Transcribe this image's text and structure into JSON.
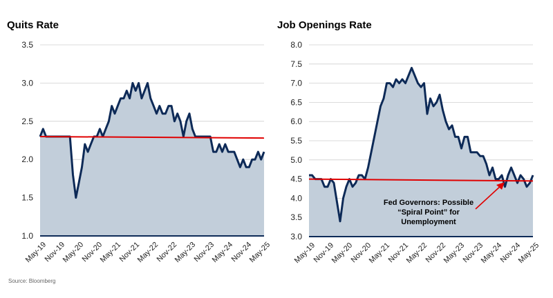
{
  "source": "Source: Bloomberg",
  "chart_data": [
    {
      "type": "area",
      "title": "Quits Rate",
      "ylim": [
        1.0,
        3.5
      ],
      "yticks": [
        "1.0",
        "1.5",
        "2.0",
        "2.5",
        "3.0",
        "3.5"
      ],
      "xticks": [
        "May-19",
        "Nov-19",
        "May-20",
        "Nov-20",
        "May-21",
        "Nov-21",
        "May-22",
        "Nov-22",
        "May-23",
        "Nov-23",
        "May-24",
        "Nov-24",
        "May-25"
      ],
      "x_start": "2019-05",
      "x_end": "2025-05",
      "values": [
        2.3,
        2.4,
        2.3,
        2.3,
        2.3,
        2.3,
        2.3,
        2.3,
        2.3,
        2.3,
        2.3,
        1.8,
        1.5,
        1.7,
        1.9,
        2.2,
        2.1,
        2.2,
        2.3,
        2.3,
        2.4,
        2.3,
        2.4,
        2.5,
        2.7,
        2.6,
        2.7,
        2.8,
        2.8,
        2.9,
        2.8,
        3.0,
        2.9,
        3.0,
        2.8,
        2.9,
        3.0,
        2.8,
        2.7,
        2.6,
        2.7,
        2.6,
        2.6,
        2.7,
        2.7,
        2.5,
        2.6,
        2.5,
        2.3,
        2.5,
        2.6,
        2.4,
        2.3,
        2.3,
        2.3,
        2.3,
        2.3,
        2.3,
        2.1,
        2.1,
        2.2,
        2.1,
        2.2,
        2.1,
        2.1,
        2.1,
        2.0,
        1.9,
        2.0,
        1.9,
        1.9,
        2.0,
        2.0,
        2.1,
        2.0,
        2.1
      ],
      "reference_line": {
        "start": 2.3,
        "end": 2.28,
        "color": "#e00000"
      },
      "colors": {
        "line": "#0d2a57",
        "fill": "#c2ceda"
      }
    },
    {
      "type": "area",
      "title": "Job Openings Rate",
      "ylim": [
        3.0,
        8.0
      ],
      "yticks": [
        "3.0",
        "3.5",
        "4.0",
        "4.5",
        "5.0",
        "5.5",
        "6.0",
        "6.5",
        "7.0",
        "7.5",
        "8.0"
      ],
      "xticks": [
        "May-19",
        "Nov-19",
        "May-20",
        "Nov-20",
        "May-21",
        "Nov-21",
        "May-22",
        "Nov-22",
        "May-23",
        "Nov-23",
        "May-24",
        "Nov-24",
        "May-25"
      ],
      "x_start": "2019-05",
      "x_end": "2025-05",
      "values": [
        4.6,
        4.6,
        4.5,
        4.5,
        4.5,
        4.3,
        4.3,
        4.5,
        4.4,
        3.9,
        3.4,
        4.0,
        4.3,
        4.5,
        4.3,
        4.4,
        4.6,
        4.6,
        4.5,
        4.8,
        5.2,
        5.6,
        6.0,
        6.4,
        6.6,
        7.0,
        7.0,
        6.9,
        7.1,
        7.0,
        7.1,
        7.0,
        7.2,
        7.4,
        7.2,
        7.0,
        6.9,
        7.0,
        6.2,
        6.6,
        6.4,
        6.5,
        6.7,
        6.3,
        6.0,
        5.8,
        5.9,
        5.6,
        5.6,
        5.3,
        5.6,
        5.6,
        5.2,
        5.2,
        5.2,
        5.1,
        5.1,
        4.9,
        4.6,
        4.8,
        4.5,
        4.5,
        4.6,
        4.3,
        4.6,
        4.8,
        4.6,
        4.4,
        4.6,
        4.5,
        4.3,
        4.4,
        4.6
      ],
      "reference_line": {
        "start": 4.5,
        "end": 4.45,
        "color": "#e00000"
      },
      "annotation": {
        "lines": [
          "Fed Governors: Possible",
          "“Spiral Point” for",
          "Unemployment"
        ],
        "color": "#e00000"
      },
      "colors": {
        "line": "#0d2a57",
        "fill": "#c2ceda"
      }
    }
  ]
}
